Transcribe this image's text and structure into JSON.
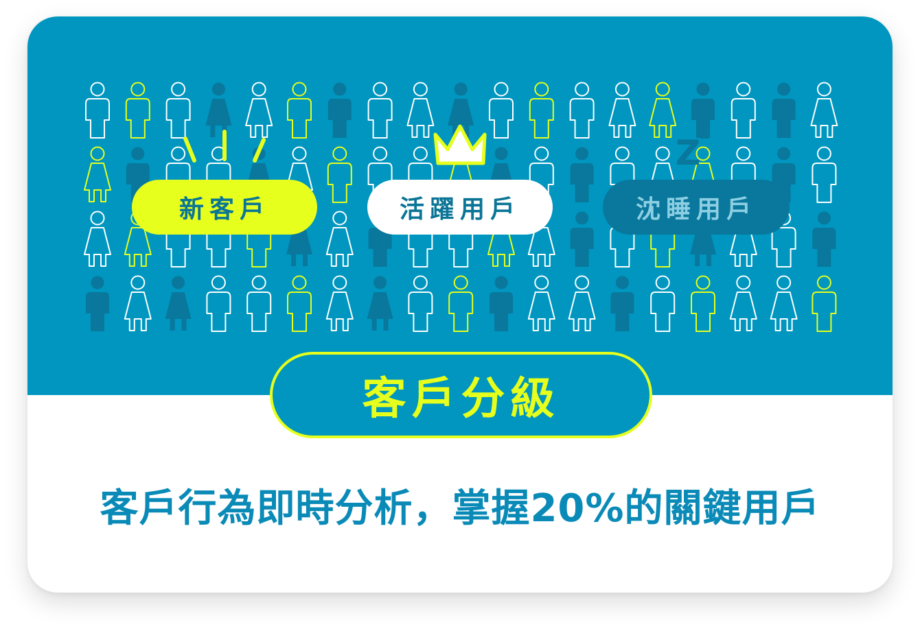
{
  "segments": {
    "new": "新客戶",
    "active": "活躍用戶",
    "sleeping": "沈睡用戶"
  },
  "title": "客戶分級",
  "subtitle": "客戶行為即時分析，掌握20%的關鍵用戶",
  "icons": {
    "new": "sparkle-lines-icon",
    "active": "crown-icon",
    "sleeping": "zzz-icon",
    "crowd": "person-icon"
  },
  "colors": {
    "banner": "#0096BF",
    "accent": "#E6FF1D",
    "text": "#0A8AB7",
    "dark": "#0A779C",
    "outline": "#FFFFFF"
  }
}
